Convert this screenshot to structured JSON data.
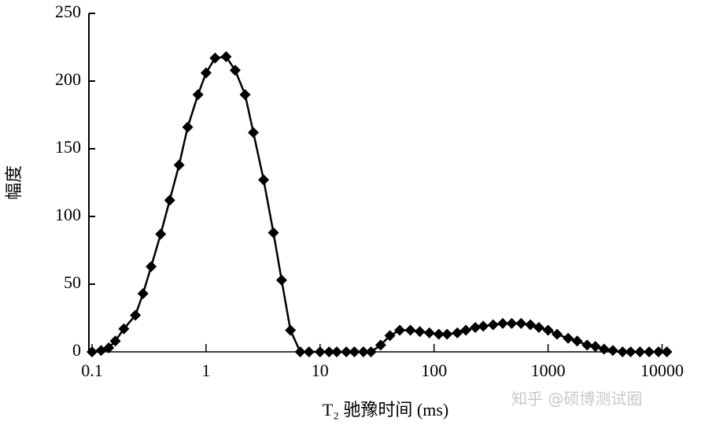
{
  "chart_data": {
    "type": "line",
    "x_label": "T₂ 驰豫时间 (ms)",
    "y_label": "幅度",
    "watermark": "知乎 @硕博测试圈",
    "x": [
      0.1,
      0.12,
      0.14,
      0.16,
      0.19,
      0.24,
      0.28,
      0.33,
      0.4,
      0.48,
      0.58,
      0.69,
      0.85,
      1.0,
      1.2,
      1.5,
      1.8,
      2.2,
      2.6,
      3.2,
      3.9,
      4.6,
      5.5,
      6.7,
      8,
      10,
      12,
      14,
      17,
      20,
      24,
      28,
      34,
      41,
      50,
      62,
      75,
      91,
      110,
      130,
      160,
      190,
      230,
      270,
      330,
      400,
      480,
      580,
      700,
      830,
      1000,
      1200,
      1500,
      1800,
      2200,
      2600,
      3100,
      3700,
      4500,
      5300,
      6400,
      7700,
      9300,
      11000
    ],
    "values": [
      0,
      1,
      3,
      8,
      17,
      27,
      43,
      63,
      87,
      112,
      138,
      166,
      190,
      206,
      217,
      218,
      208,
      190,
      162,
      127,
      88,
      53,
      16,
      0,
      0,
      0,
      0,
      0,
      0,
      0,
      0,
      0,
      5,
      12,
      16,
      16,
      15,
      14,
      13,
      13,
      14,
      16,
      18,
      19,
      20,
      21,
      21,
      21,
      20,
      18,
      16,
      13,
      10,
      8,
      5,
      4,
      2,
      1,
      0,
      0,
      0,
      0,
      0,
      0
    ],
    "color": "#000000",
    "x_log": true,
    "xlim": [
      0.1,
      12000
    ],
    "xticks": [
      0.1,
      1,
      10,
      100,
      1000,
      10000
    ],
    "ylim": [
      0,
      250
    ],
    "yticks": [
      0,
      50,
      100,
      150,
      200,
      250
    ]
  }
}
